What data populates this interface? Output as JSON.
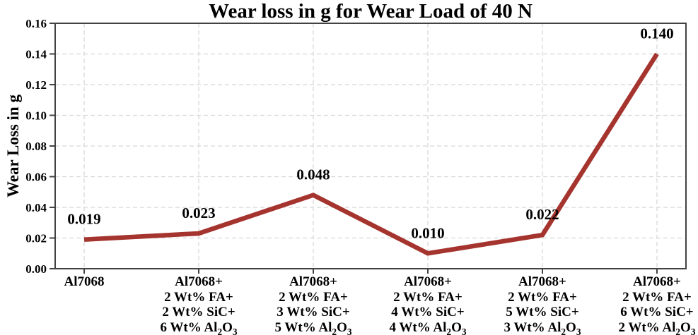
{
  "chart_data": {
    "type": "line",
    "title": "Wear loss in g for Wear Load of 40 N",
    "ylabel": "Wear Loss in g",
    "xlabel": "",
    "ylim": [
      0,
      0.16
    ],
    "ytick_labels": [
      "0.00",
      "0.02",
      "0.04",
      "0.06",
      "0.08",
      "0.10",
      "0.12",
      "0.14",
      "0.16"
    ],
    "categories": [
      [
        "Al7068"
      ],
      [
        "Al7068+",
        "2 Wt% FA+",
        "2 Wt% SiC+",
        "6 Wt% Al₂O₃"
      ],
      [
        "Al7068+",
        "2 Wt% FA+",
        "3 Wt% SiC+",
        "5 Wt% Al₂O₃"
      ],
      [
        "Al7068+",
        "2 Wt% FA+",
        "4 Wt% SiC+",
        "4 Wt% Al₂O₃"
      ],
      [
        "Al7068+",
        "2 Wt% FA+",
        "5 Wt% SiC+",
        "3 Wt% Al₂O₃"
      ],
      [
        "Al7068+",
        "2 Wt% FA+",
        "6 Wt% SiC+",
        "2 Wt% Al₂O₃"
      ]
    ],
    "values": [
      0.019,
      0.023,
      0.048,
      0.01,
      0.022,
      0.14
    ],
    "point_labels": [
      "0.019",
      "0.023",
      "0.048",
      "0.010",
      "0.022",
      "0.140"
    ],
    "grid": "both-dashed",
    "legend_position": "none",
    "line_color": "#A5342E",
    "frame_color": "#424242",
    "grid_color": "#d8d8d8",
    "text_color": "#000000"
  }
}
